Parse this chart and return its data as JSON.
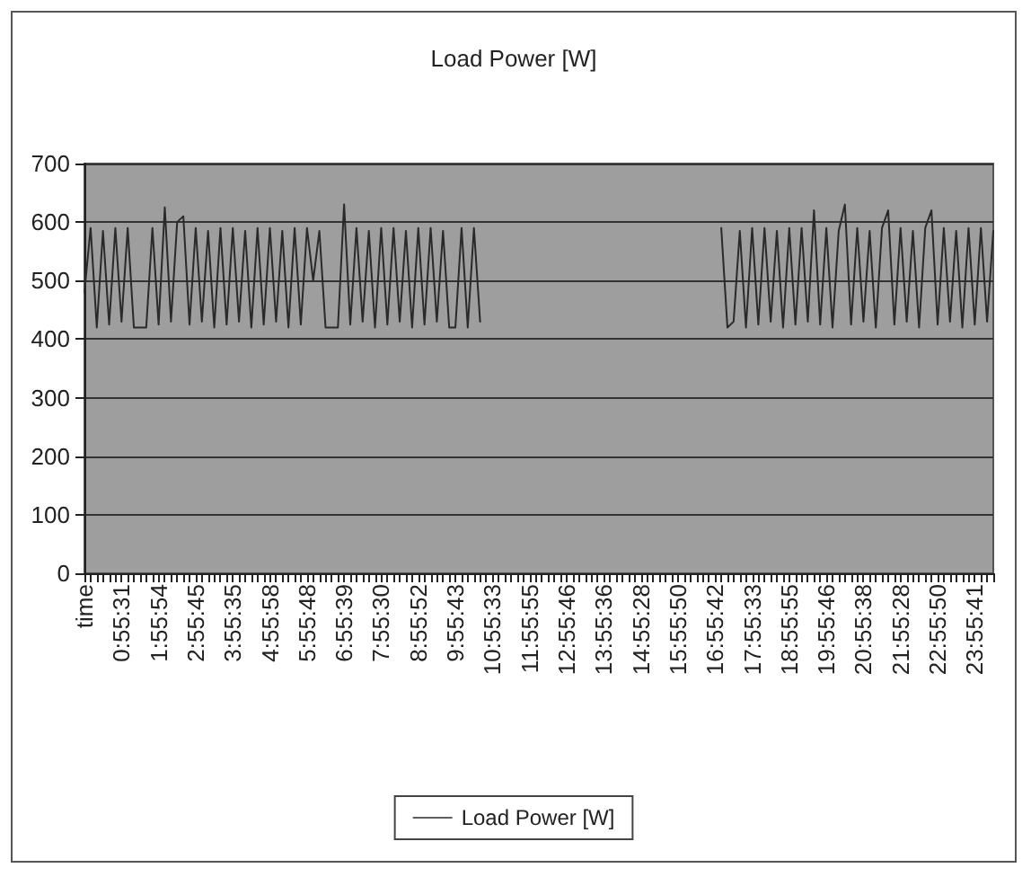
{
  "chart_data": {
    "type": "line",
    "title": "Load Power [W]",
    "categories": [
      "time",
      null,
      null,
      null,
      null,
      null,
      "0:55:31",
      null,
      null,
      null,
      null,
      null,
      "1:55:54",
      null,
      null,
      null,
      null,
      null,
      "2:55:45",
      null,
      null,
      null,
      null,
      null,
      "3:55:35",
      null,
      null,
      null,
      null,
      null,
      "4:55:58",
      null,
      null,
      null,
      null,
      null,
      "5:55:48",
      null,
      null,
      null,
      null,
      null,
      "6:55:39",
      null,
      null,
      null,
      null,
      null,
      "7:55:30",
      null,
      null,
      null,
      null,
      null,
      "8:55:52",
      null,
      null,
      null,
      null,
      null,
      "9:55:43",
      null,
      null,
      null,
      null,
      null,
      "10:55:33",
      null,
      null,
      null,
      null,
      null,
      "11:55:55",
      null,
      null,
      null,
      null,
      null,
      "12:55:46",
      null,
      null,
      null,
      null,
      null,
      "13:55:36",
      null,
      null,
      null,
      null,
      null,
      "14:55:28",
      null,
      null,
      null,
      null,
      null,
      "15:55:50",
      null,
      null,
      null,
      null,
      null,
      "16:55:42",
      null,
      null,
      null,
      null,
      null,
      "17:55:33",
      null,
      null,
      null,
      null,
      null,
      "18:55:55",
      null,
      null,
      null,
      null,
      null,
      "19:55:46",
      null,
      null,
      null,
      null,
      null,
      "20:55:38",
      null,
      null,
      null,
      null,
      null,
      "21:55:28",
      null,
      null,
      null,
      null,
      null,
      "22:55:50",
      null,
      null,
      null,
      null,
      null,
      "23:55:41",
      null,
      null,
      null
    ],
    "series": [
      {
        "name": "Load Power [W]",
        "color": "#2a2a2a",
        "values": [
          480,
          590,
          420,
          585,
          425,
          590,
          430,
          590,
          420,
          420,
          420,
          590,
          425,
          625,
          430,
          600,
          610,
          425,
          590,
          430,
          585,
          420,
          590,
          425,
          590,
          430,
          585,
          420,
          590,
          425,
          590,
          430,
          585,
          420,
          590,
          425,
          590,
          500,
          585,
          420,
          420,
          420,
          630,
          425,
          590,
          430,
          585,
          420,
          590,
          425,
          590,
          430,
          585,
          420,
          590,
          425,
          590,
          430,
          585,
          420,
          420,
          590,
          420,
          590,
          430,
          null,
          null,
          null,
          null,
          null,
          null,
          null,
          null,
          null,
          null,
          null,
          null,
          null,
          null,
          null,
          null,
          null,
          null,
          null,
          null,
          null,
          null,
          null,
          null,
          null,
          null,
          null,
          null,
          null,
          null,
          null,
          null,
          null,
          null,
          null,
          null,
          null,
          null,
          590,
          420,
          430,
          585,
          420,
          590,
          425,
          590,
          430,
          585,
          420,
          590,
          425,
          590,
          430,
          620,
          425,
          590,
          420,
          585,
          630,
          425,
          590,
          430,
          585,
          420,
          590,
          620,
          425,
          590,
          430,
          585,
          420,
          590,
          620,
          425,
          590,
          430,
          585,
          420,
          590,
          425,
          590,
          430,
          585
        ]
      }
    ],
    "ylim": [
      0,
      700
    ],
    "yticks": [
      0,
      100,
      200,
      300,
      400,
      500,
      600,
      700
    ],
    "grid": "y",
    "legend": "bottom",
    "marker": "none",
    "line_style": "solid"
  }
}
